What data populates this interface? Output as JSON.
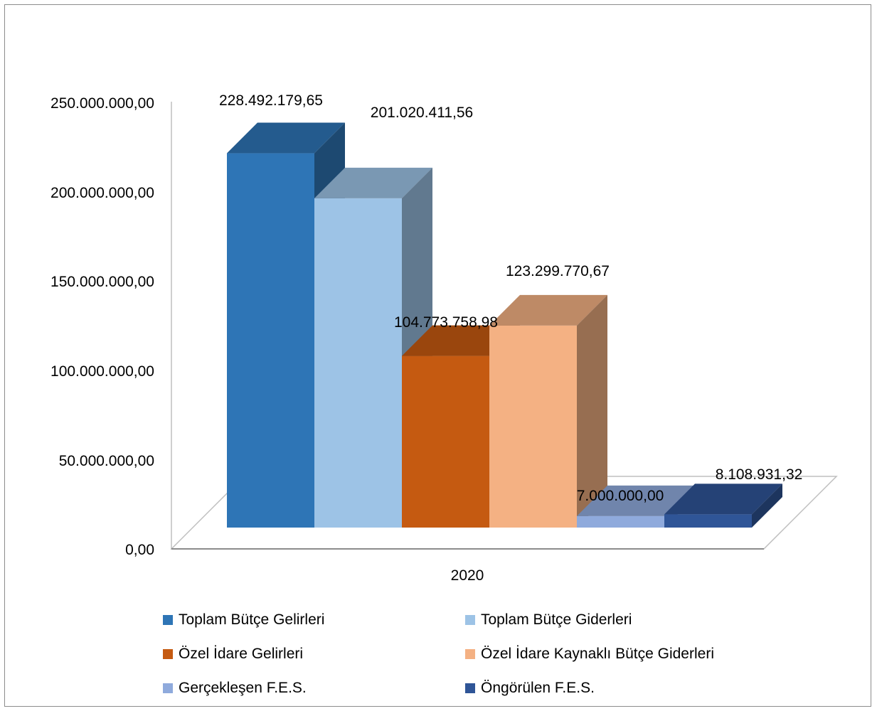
{
  "chart_data": {
    "type": "bar",
    "variant": "3d-clustered-column",
    "categories": [
      "2020"
    ],
    "series": [
      {
        "name": "Toplam Bütçe Gelirleri",
        "values": [
          228492179.65
        ],
        "label": "228.492.179,65",
        "color": "#2E75B6"
      },
      {
        "name": "Toplam Bütçe Giderleri",
        "values": [
          201020411.56
        ],
        "label": "201.020.411,56",
        "color": "#9DC3E6"
      },
      {
        "name": "Özel İdare Gelirleri",
        "values": [
          104773758.98
        ],
        "label": "104.773.758,98",
        "color": "#C55A11"
      },
      {
        "name": "Özel İdare Kaynaklı Bütçe Giderleri",
        "values": [
          123299770.67
        ],
        "label": "123.299.770,67",
        "color": "#F4B183"
      },
      {
        "name": "Gerçekleşen F.E.S.",
        "values": [
          7000000.0
        ],
        "label": "7.000.000,00",
        "color": "#8FAADC"
      },
      {
        "name": "Öngörülen F.E.S.",
        "values": [
          8108931.32
        ],
        "label": "8.108.931,32",
        "color": "#2F5597"
      }
    ],
    "ylim": [
      0,
      250000000
    ],
    "yticks": [
      0,
      50000000,
      100000000,
      150000000,
      200000000,
      250000000
    ],
    "ytick_labels": [
      "0,00",
      "50.000.000,00",
      "100.000.000,00",
      "150.000.000,00",
      "200.000.000,00",
      "250.000.000,00"
    ],
    "xlabel": "",
    "ylabel": "",
    "title": "",
    "grid": false,
    "legend_position": "bottom"
  }
}
